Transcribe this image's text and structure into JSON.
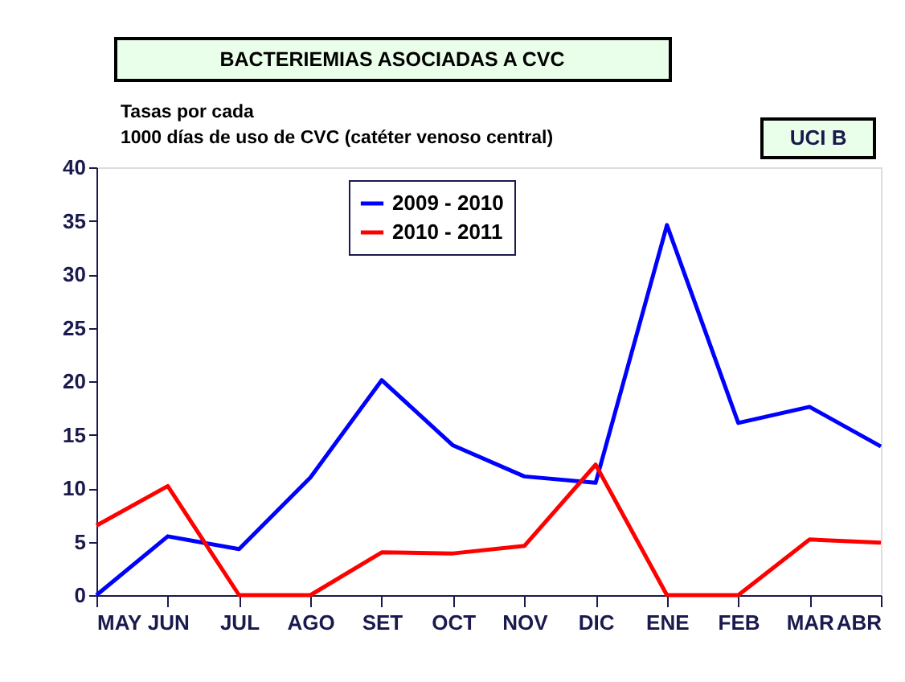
{
  "chart_data": {
    "type": "line",
    "title": "BACTERIEMIAS ASOCIADAS A CVC",
    "ylabel": "Tasas por cada\n1000  días de uso de CVC (catéter venoso central)",
    "annotations": [
      "UCI  B"
    ],
    "categories": [
      "MAY",
      "JUN",
      "JUL",
      "AGO",
      "SET",
      "OCT",
      "NOV",
      "DIC",
      "ENE",
      "FEB",
      "MAR",
      "ABR"
    ],
    "series": [
      {
        "name": "2009 - 2010",
        "color": "#0000ff",
        "values": [
          0,
          5.5,
          4.3,
          11,
          20.1,
          14,
          11.1,
          10.5,
          34.6,
          16.1,
          17.6,
          13.9
        ]
      },
      {
        "name": "2010 - 2011",
        "color": "#ff0000",
        "values": [
          6.5,
          10.2,
          0,
          0,
          4.0,
          3.9,
          4.6,
          12.2,
          0,
          0,
          5.2,
          4.9
        ]
      }
    ],
    "ylim": [
      0,
      40
    ],
    "yticks": [
      0,
      5,
      10,
      15,
      20,
      25,
      30,
      35,
      40
    ],
    "grid": false,
    "legend": "top",
    "marker": "none",
    "line_style": "solid"
  }
}
